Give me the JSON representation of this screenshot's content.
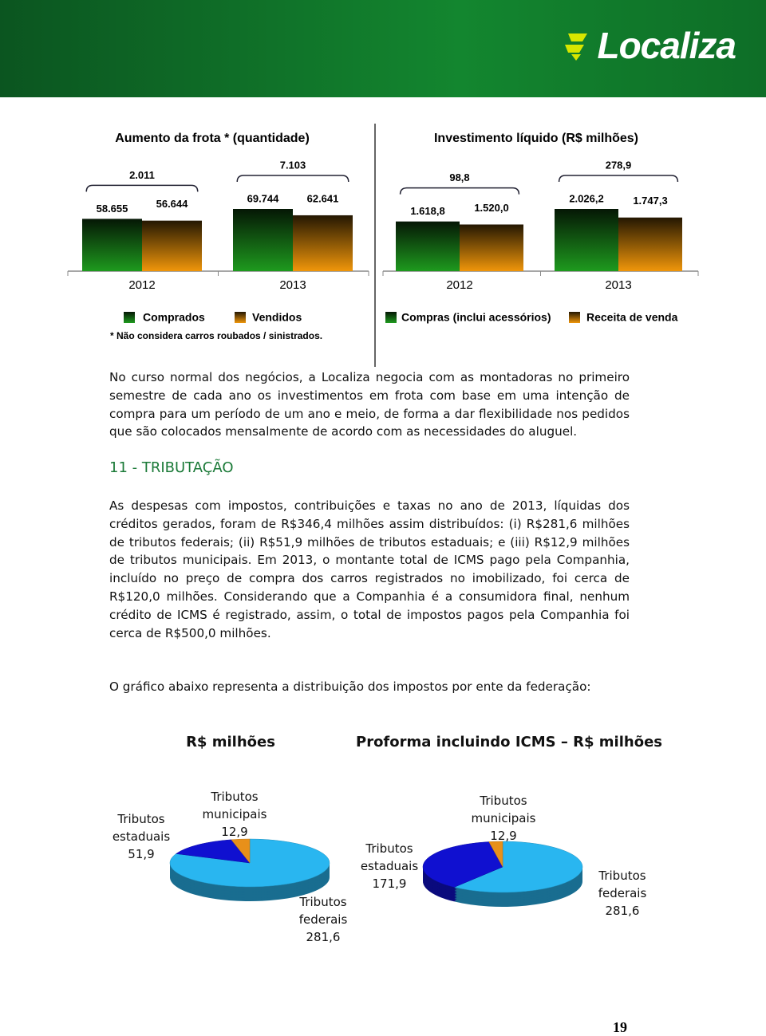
{
  "header": {
    "logo": "Localiza"
  },
  "chart_data": [
    {
      "type": "bar",
      "title": "Aumento da frota * (quantidade)",
      "categories": [
        "2012",
        "2013"
      ],
      "series": [
        {
          "name": "Comprados",
          "color": "#1e9a1e",
          "values": [
            58655,
            69744
          ],
          "value_labels": [
            "58.655",
            "69.744"
          ]
        },
        {
          "name": "Vendidos",
          "color": "#f0960a",
          "values": [
            56644,
            62641
          ],
          "value_labels": [
            "56.644",
            "62.641"
          ]
        }
      ],
      "annotations": [
        "2.011",
        "7.103"
      ],
      "footnote": "* Não considera carros roubados / sinistrados."
    },
    {
      "type": "bar",
      "title": "Investimento líquido (R$ milhões)",
      "categories": [
        "2012",
        "2013"
      ],
      "series": [
        {
          "name": "Compras (inclui acessórios)",
          "color": "#1e9a1e",
          "values": [
            1618.8,
            2026.2
          ],
          "value_labels": [
            "1.618,8",
            "2.026,2"
          ]
        },
        {
          "name": "Receita de venda",
          "color": "#f0960a",
          "values": [
            1520.0,
            1747.3
          ],
          "value_labels": [
            "1.520,0",
            "1.747,3"
          ]
        }
      ],
      "annotations": [
        "98,8",
        "278,9"
      ]
    },
    {
      "type": "pie",
      "title": "R$ milhões",
      "categories": [
        "Tributos federais",
        "Tributos estaduais",
        "Tributos municipais"
      ],
      "values": [
        281.6,
        51.9,
        12.9
      ],
      "value_labels": [
        "281,6",
        "51,9",
        "12,9"
      ],
      "colors": [
        "#29b6f0",
        "#1010d0",
        "#e8901a"
      ]
    },
    {
      "type": "pie",
      "title": "Proforma incluindo ICMS – R$ milhões",
      "categories": [
        "Tributos federais",
        "Tributos estaduais",
        "Tributos municipais"
      ],
      "values": [
        281.6,
        171.9,
        12.9
      ],
      "value_labels": [
        "281,6",
        "171,9",
        "12,9"
      ],
      "colors": [
        "#29b6f0",
        "#1010d0",
        "#e8901a"
      ]
    }
  ],
  "body": {
    "paragraph_1": "No curso normal dos negócios, a Localiza negocia com as montadoras no primeiro semestre de cada ano os investimentos em frota com base em uma intenção de compra para um período de um ano e meio, de forma a dar flexibilidade nos pedidos que são colocados mensalmente de acordo com as necessidades do aluguel.",
    "section_title": "11 - TRIBUTAÇÃO",
    "paragraph_2": "As despesas com impostos, contribuições e taxas no ano de 2013, líquidas dos créditos gerados, foram de R$346,4 milhões assim distribuídos: (i) R$281,6 milhões de tributos federais; (ii) R$51,9 milhões de tributos estaduais; e (iii) R$12,9 milhões de tributos municipais. Em 2013, o montante total de ICMS pago pela Companhia, incluído no preço de compra dos carros registrados no imobilizado, foi cerca de R$120,0 milhões. Considerando que a Companhia é a consumidora final, nenhum crédito de ICMS é registrado, assim, o total de impostos pagos pela Companhia foi cerca de R$500,0 milhões.",
    "paragraph_3": "O gráfico abaixo representa a distribuição dos impostos por ente da federação:"
  },
  "page_number": "19"
}
